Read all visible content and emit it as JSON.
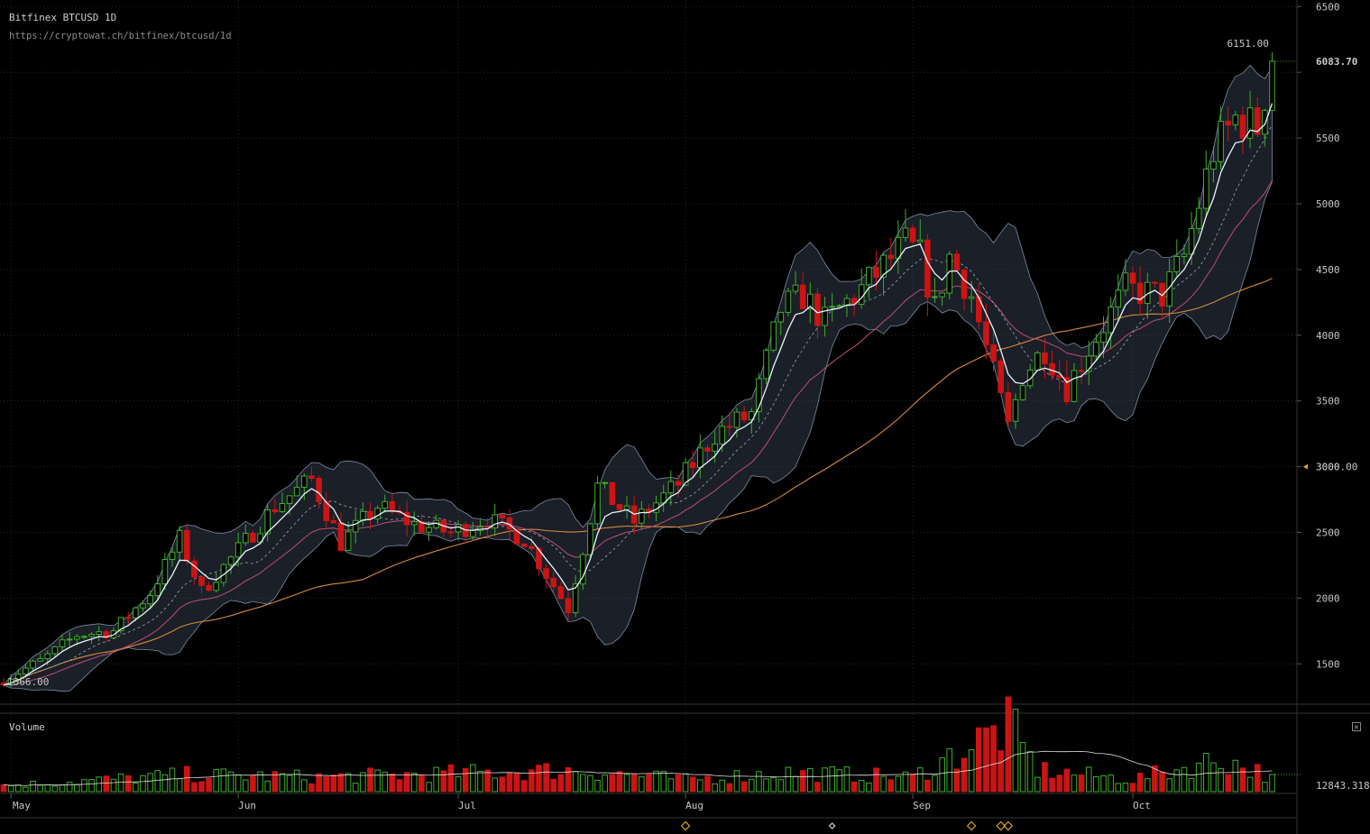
{
  "header": {
    "title": "Bitfinex BTCUSD 1D",
    "url": "https://cryptowat.ch/bitfinex/btcusd/1d"
  },
  "volume_panel": {
    "label": "Volume",
    "close_icon": "close-icon"
  },
  "colors": {
    "background": "#000000",
    "up": "#3fae2a",
    "down": "#cc1414",
    "ema_fast": "#e8f4ff",
    "band": "#4a5874",
    "mid": "#c05070",
    "sma_long": "#d8893b",
    "grid": "#262626",
    "event_marker": "#d8a820"
  },
  "chart_data": {
    "type": "candlestick",
    "exchange": "Bitfinex",
    "pair": "BTCUSD",
    "timeframe": "1D",
    "ylim": [
      1200,
      6550
    ],
    "yticks": [
      1500,
      2000,
      2500,
      3000,
      3500,
      4000,
      4500,
      5000,
      5500,
      6000,
      6500
    ],
    "ytick_labels": [
      "1500",
      "2000",
      "2500",
      "3000",
      "3500",
      "4000",
      "4500",
      "5000",
      "5500",
      "",
      "6500"
    ],
    "xtick_labels": [
      "May",
      "Jun",
      "Jul",
      "Aug",
      "Sep",
      "Oct"
    ],
    "xtick_dates": [
      "2017-05-01",
      "2017-06-01",
      "2017-07-01",
      "2017-08-01",
      "2017-09-01",
      "2017-10-01"
    ],
    "first_date": "2017-04-30",
    "last_date": "2017-10-20",
    "annotations": {
      "high": "6151.00",
      "low": "1366.00",
      "last_price": "6083.70",
      "alert_level": "3000.00",
      "last_volume": "12843.318"
    },
    "grid": true,
    "close_anchors": [
      [
        "2017-04-30",
        1380
      ],
      [
        "2017-05-05",
        1520
      ],
      [
        "2017-05-10",
        1720
      ],
      [
        "2017-05-15",
        1750
      ],
      [
        "2017-05-20",
        2040
      ],
      [
        "2017-05-24",
        2450
      ],
      [
        "2017-05-27",
        2050
      ],
      [
        "2017-05-31",
        2300
      ],
      [
        "2017-06-06",
        2700
      ],
      [
        "2017-06-11",
        2900
      ],
      [
        "2017-06-15",
        2420
      ],
      [
        "2017-06-20",
        2700
      ],
      [
        "2017-06-25",
        2560
      ],
      [
        "2017-06-30",
        2500
      ],
      [
        "2017-07-05",
        2600
      ],
      [
        "2017-07-10",
        2450
      ],
      [
        "2017-07-16",
        1920
      ],
      [
        "2017-07-20",
        2850
      ],
      [
        "2017-07-25",
        2580
      ],
      [
        "2017-07-31",
        2870
      ],
      [
        "2017-08-05",
        3250
      ],
      [
        "2017-08-10",
        3400
      ],
      [
        "2017-08-14",
        4200
      ],
      [
        "2017-08-17",
        4300
      ],
      [
        "2017-08-20",
        4100
      ],
      [
        "2017-08-25",
        4350
      ],
      [
        "2017-08-31",
        4700
      ],
      [
        "2017-09-02",
        4600
      ],
      [
        "2017-09-04",
        4200
      ],
      [
        "2017-09-06",
        4600
      ],
      [
        "2017-09-09",
        4300
      ],
      [
        "2017-09-14",
        3300
      ],
      [
        "2017-09-16",
        3700
      ],
      [
        "2017-09-19",
        3900
      ],
      [
        "2017-09-22",
        3600
      ],
      [
        "2017-09-25",
        3900
      ],
      [
        "2017-09-30",
        4350
      ],
      [
        "2017-10-05",
        4300
      ],
      [
        "2017-10-08",
        4600
      ],
      [
        "2017-10-12",
        5400
      ],
      [
        "2017-10-15",
        5650
      ],
      [
        "2017-10-18",
        5580
      ],
      [
        "2017-10-20",
        6083.7
      ]
    ],
    "volume_anchors": [
      [
        "2017-04-30",
        5000
      ],
      [
        "2017-05-25",
        14000
      ],
      [
        "2017-06-12",
        12000
      ],
      [
        "2017-07-17",
        18000
      ],
      [
        "2017-08-01",
        10000
      ],
      [
        "2017-08-15",
        16000
      ],
      [
        "2017-09-01",
        12000
      ],
      [
        "2017-09-14",
        55000
      ],
      [
        "2017-09-18",
        18000
      ],
      [
        "2017-10-01",
        10000
      ],
      [
        "2017-10-13",
        27000
      ],
      [
        "2017-10-20",
        12843.318
      ]
    ],
    "volume_ylim": [
      0,
      58000
    ],
    "sma_long_period": 50,
    "event_markers": [
      "2017-08-01",
      "2017-08-21",
      "2017-09-09",
      "2017-09-13",
      "2017-09-14"
    ]
  }
}
